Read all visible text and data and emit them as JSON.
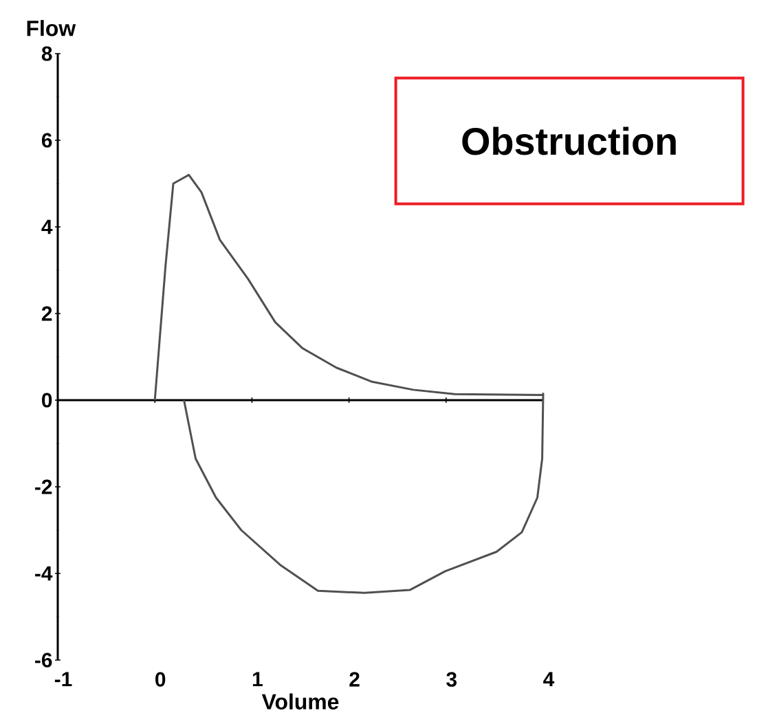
{
  "chart_data": {
    "type": "line",
    "title": "Obstruction",
    "xlabel": "Volume",
    "ylabel": "Flow",
    "xlim": [
      -1,
      4
    ],
    "ylim": [
      -6,
      8
    ],
    "xticks": [
      -1,
      0,
      1,
      2,
      3,
      4
    ],
    "yticks": [
      -6,
      -4,
      -2,
      0,
      2,
      4,
      6,
      8
    ],
    "series": [
      {
        "color": "#505050",
        "x": [
          0.0,
          0.11,
          0.19,
          0.35,
          0.48,
          0.67,
          0.96,
          1.24,
          1.52,
          1.87,
          2.23,
          2.66,
          3.09,
          4.0,
          4.0,
          3.99,
          3.94,
          3.78,
          3.52,
          2.99,
          2.63,
          2.16,
          1.68,
          1.29,
          0.89,
          0.63,
          0.42,
          0.3
        ],
        "values": [
          0,
          3.1,
          5.0,
          5.2,
          4.8,
          3.7,
          2.8,
          1.8,
          1.2,
          0.75,
          0.43,
          0.24,
          0.14,
          0.12,
          0.15,
          -1.35,
          -2.25,
          -3.05,
          -3.5,
          -3.95,
          -4.38,
          -4.45,
          -4.4,
          -3.8,
          -3.0,
          -2.25,
          -1.35,
          0
        ]
      }
    ]
  }
}
